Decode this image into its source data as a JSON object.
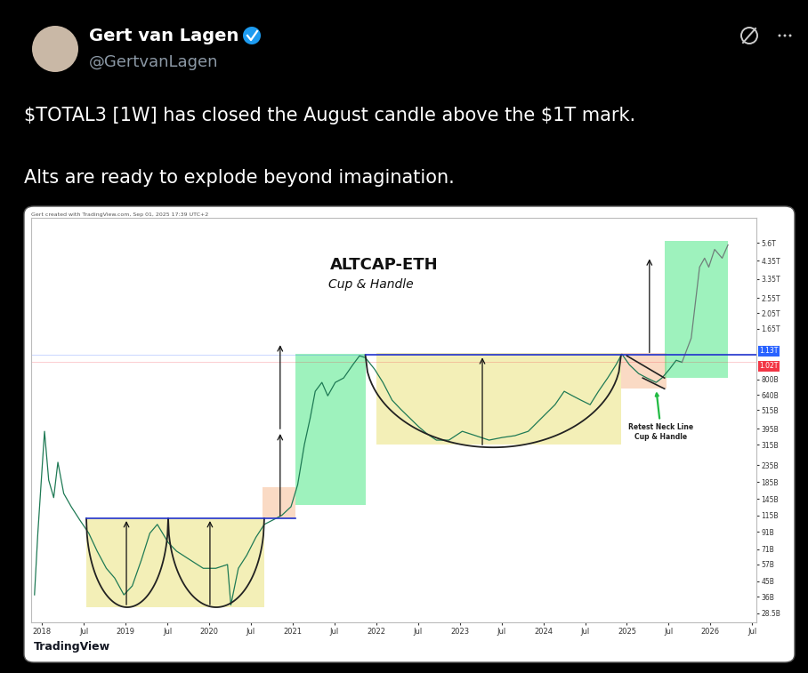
{
  "tweet": {
    "name": "Gert van Lagen",
    "handle": "@GertvanLagen",
    "text": [
      "$TOTAL3 [1W] has closed the August candle above the $1T mark.",
      "Alts are ready to explode beyond imagination."
    ]
  },
  "chart_data": {
    "type": "line",
    "title": "ALTCAP-ETH",
    "subtitle": "Cup & Handle",
    "header": "Gert created with TradingView.com, Sep 01, 2025 17:39 UTC+2",
    "brand": "TradingView",
    "log": "y",
    "grid": false,
    "xlim": [
      2017.87,
      2026.55
    ],
    "xticks": [
      2018,
      {
        "value": 2018.5,
        "label": "Jul"
      },
      2019,
      {
        "value": 2019.5,
        "label": "Jul"
      },
      2020,
      {
        "value": 2020.5,
        "label": "Jul"
      },
      2021,
      {
        "value": 2021.5,
        "label": "Jul"
      },
      2022,
      {
        "value": 2022.5,
        "label": "Jul"
      },
      2023,
      {
        "value": 2023.5,
        "label": "Jul"
      },
      2024,
      {
        "value": 2024.5,
        "label": "Jul"
      },
      2025,
      {
        "value": 2025.5,
        "label": "Jul"
      },
      2026,
      {
        "value": 2026.5,
        "label": "Jul"
      }
    ],
    "ylim": [
      25,
      8000
    ],
    "yticks": [
      {
        "value": 28.5,
        "label": "28.5B"
      },
      {
        "value": 36,
        "label": "36B"
      },
      {
        "value": 45,
        "label": "45B"
      },
      {
        "value": 57,
        "label": "57B"
      },
      {
        "value": 71,
        "label": "71B"
      },
      {
        "value": 91,
        "label": "91B"
      },
      {
        "value": 115,
        "label": "115B"
      },
      {
        "value": 145,
        "label": "145B"
      },
      {
        "value": 185,
        "label": "185B"
      },
      {
        "value": 235,
        "label": "235B"
      },
      {
        "value": 315,
        "label": "315B"
      },
      {
        "value": 395,
        "label": "395B"
      },
      {
        "value": 515,
        "label": "515B"
      },
      {
        "value": 640,
        "label": "640B"
      },
      {
        "value": 800,
        "label": "800B"
      },
      {
        "value": 1650,
        "label": "1.65T"
      },
      {
        "value": 2050,
        "label": "2.05T"
      },
      {
        "value": 2550,
        "label": "2.55T"
      },
      {
        "value": 3350,
        "label": "3.35T"
      },
      {
        "value": 4350,
        "label": "4.35T"
      },
      {
        "value": 5600,
        "label": "5.6T"
      }
    ],
    "series": [
      {
        "color": "#1f7a55",
        "x": [
          2017.91,
          2017.95,
          2018.03,
          2018.08,
          2018.14,
          2018.19,
          2018.26,
          2018.35,
          2018.45,
          2018.56,
          2018.66,
          2018.77,
          2018.87,
          2018.98,
          2019.08,
          2019.19,
          2019.29,
          2019.38,
          2019.51,
          2019.61,
          2019.77,
          2019.93,
          2020.08,
          2020.22,
          2020.26,
          2020.35,
          2020.45,
          2020.56,
          2020.66,
          2020.77,
          2020.87,
          2020.98,
          2021.06,
          2021.14,
          2021.21,
          2021.27,
          2021.35,
          2021.42,
          2021.51,
          2021.61,
          2021.72,
          2021.8,
          2021.87,
          2021.98,
          2022.08,
          2022.19,
          2022.29,
          2022.4,
          2022.51,
          2022.61,
          2022.72,
          2022.87,
          2023.03,
          2023.19,
          2023.35,
          2023.51,
          2023.66,
          2023.82,
          2023.98,
          2024.14,
          2024.25,
          2024.35,
          2024.45,
          2024.56,
          2024.66,
          2024.77,
          2024.87,
          2024.94,
          2025.03,
          2025.14,
          2025.24,
          2025.35,
          2025.42,
          2025.51,
          2025.59,
          2025.66
        ],
        "values": [
          37,
          89,
          381,
          190,
          148,
          245,
          157,
          130,
          108,
          89,
          69,
          54,
          47,
          37,
          42,
          61,
          89,
          101,
          78,
          69,
          61,
          54,
          54,
          57,
          32,
          54,
          65,
          84,
          101,
          108,
          115,
          130,
          178,
          315,
          461,
          674,
          765,
          632,
          765,
          815,
          984,
          1118,
          1090,
          924,
          765,
          594,
          524,
          461,
          406,
          367,
          336,
          336,
          381,
          358,
          336,
          349,
          358,
          381,
          461,
          557,
          674,
          632,
          594,
          557,
          674,
          815,
          984,
          1146,
          984,
          868,
          815,
          765,
          815,
          924,
          1049,
          1020
        ]
      },
      {
        "color": "#6f7f7a",
        "x": [
          2025.66,
          2025.77,
          2025.82,
          2025.87,
          2025.93,
          2025.98,
          2026.05,
          2026.14,
          2026.21
        ],
        "values": [
          1020,
          1439,
          2386,
          3962,
          4500,
          3962,
          5100,
          4500,
          5440
        ]
      }
    ],
    "zones": [
      {
        "x": [
          2018.53,
          2020.66
        ],
        "y": [
          31,
          110
        ],
        "color": "#e8e070"
      },
      {
        "x": [
          2020.64,
          2021.03
        ],
        "y": [
          110,
          172
        ],
        "color": "#f7b68a"
      },
      {
        "x": [
          2021.03,
          2021.87
        ],
        "y": [
          133,
          1146
        ],
        "color": "#3ee67d"
      },
      {
        "x": [
          2022.0,
          2024.93
        ],
        "y": [
          315,
          1160
        ],
        "color": "#e8e070"
      },
      {
        "x": [
          2024.93,
          2025.47
        ],
        "y": [
          699,
          1160
        ],
        "color": "#f7b68a"
      },
      {
        "x": [
          2025.45,
          2026.21
        ],
        "y": [
          815,
          5790
        ],
        "color": "#3ee67d"
      }
    ],
    "arcs": [
      {
        "x": [
          2018.53,
          2019.51
        ],
        "y": [
          110,
          31
        ]
      },
      {
        "x": [
          2019.51,
          2020.66
        ],
        "y": [
          110,
          31
        ]
      },
      {
        "x": [
          2021.87,
          2024.93
        ],
        "y": [
          1130,
          303
        ]
      }
    ],
    "trendlines": [
      {
        "x": [
          2018.53,
          2021.03
        ],
        "y": [
          110,
          110
        ],
        "color": "#2233cc"
      },
      {
        "x": [
          2021.87,
          2026.55
        ],
        "y": [
          1130,
          1130
        ],
        "color": "#2233cc"
      },
      {
        "x": [
          2025.0,
          2025.45
        ],
        "y": [
          1118,
          815
        ],
        "color": "#222222"
      },
      {
        "x": [
          2025.19,
          2025.45
        ],
        "y": [
          815,
          699
        ],
        "color": "#222222"
      }
    ],
    "arrows": [
      {
        "x": 2019.01,
        "y": [
          31,
          110
        ]
      },
      {
        "x": 2020.01,
        "y": [
          31,
          110
        ]
      },
      {
        "x": 2020.85,
        "y": [
          110,
          381
        ]
      },
      {
        "x": 2020.85,
        "y": [
          381,
          1351
        ]
      },
      {
        "x": 2023.27,
        "y": [
          303,
          1130
        ]
      },
      {
        "x": 2025.27,
        "y": [
          1130,
          4610
        ]
      }
    ],
    "annotations": [
      {
        "text": "Retest Neck Line\nCup & Handle",
        "target": [
          2025.35,
          699
        ],
        "color": "#22bb44"
      }
    ],
    "price_labels": [
      {
        "value": 1130,
        "label": "1.13T",
        "color": "#2962ff"
      },
      {
        "value": 1020,
        "label": "1.02T",
        "color": "#f23645"
      }
    ]
  }
}
